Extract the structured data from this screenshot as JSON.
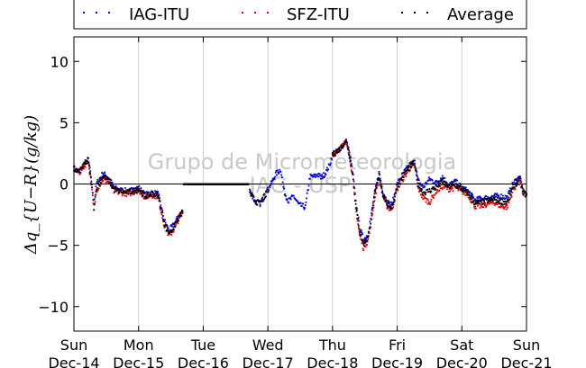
{
  "chart_data": {
    "type": "scatter",
    "ylabel": "Δq_{U−R}(g/kg)",
    "ylim": [
      -12,
      12
    ],
    "yticks": [
      10,
      5,
      0,
      -5,
      -10
    ],
    "y_tick_labels": [
      "10",
      "5",
      "0",
      "−5",
      "−10"
    ],
    "xlim": [
      0,
      7
    ],
    "x_ticks": [
      {
        "pos": 0,
        "day": "Sun",
        "date": "Dec-14"
      },
      {
        "pos": 1,
        "day": "Mon",
        "date": "Dec-15"
      },
      {
        "pos": 2,
        "day": "Tue",
        "date": "Dec-16"
      },
      {
        "pos": 3,
        "day": "Wed",
        "date": "Dec-17"
      },
      {
        "pos": 4,
        "day": "Thu",
        "date": "Dec-18"
      },
      {
        "pos": 5,
        "day": "Fri",
        "date": "Dec-19"
      },
      {
        "pos": 6,
        "day": "Sat",
        "date": "Dec-20"
      },
      {
        "pos": 7,
        "day": "Sun",
        "date": "Dec-21"
      }
    ],
    "grid": "vertical",
    "legend": "top",
    "zero_line": true,
    "watermark": [
      "Grupo de Micrometeorologia",
      "IAG - USP"
    ],
    "series": [
      {
        "name": "IAG-ITU",
        "color": "#0000cc",
        "segments": [
          [
            [
              0.0,
              1.3
            ],
            [
              0.08,
              1.0
            ],
            [
              0.15,
              1.6
            ],
            [
              0.22,
              2.0
            ],
            [
              0.27,
              0.3
            ],
            [
              0.31,
              -1.6
            ],
            [
              0.35,
              0.0
            ],
            [
              0.45,
              0.9
            ],
            [
              0.55,
              0.4
            ],
            [
              0.62,
              -0.3
            ],
            [
              0.72,
              -0.5
            ],
            [
              0.85,
              -0.6
            ],
            [
              0.95,
              -0.4
            ],
            [
              1.0,
              -0.3
            ],
            [
              1.1,
              -0.9
            ],
            [
              1.2,
              -0.7
            ],
            [
              1.3,
              -0.8
            ],
            [
              1.35,
              -1.9
            ],
            [
              1.4,
              -3.0
            ],
            [
              1.47,
              -3.8
            ],
            [
              1.55,
              -3.3
            ],
            [
              1.62,
              -2.6
            ],
            [
              1.68,
              -2.2
            ]
          ],
          [
            [
              2.72,
              -0.6
            ],
            [
              2.8,
              -1.4
            ],
            [
              2.88,
              -1.6
            ],
            [
              2.97,
              -0.8
            ],
            [
              3.05,
              0.0
            ],
            [
              3.12,
              0.8
            ],
            [
              3.2,
              1.2
            ],
            [
              3.25,
              -0.6
            ],
            [
              3.32,
              -1.4
            ],
            [
              3.4,
              -1.0
            ],
            [
              3.48,
              -1.7
            ],
            [
              3.58,
              -1.9
            ],
            [
              3.65,
              0.6
            ],
            [
              3.72,
              0.6
            ],
            [
              3.78,
              0.8
            ],
            [
              3.82,
              0.5
            ],
            [
              3.88,
              0.8
            ],
            [
              3.95,
              1.5
            ],
            [
              4.0,
              2.4
            ],
            [
              4.08,
              2.7
            ],
            [
              4.15,
              3.1
            ],
            [
              4.22,
              3.5
            ],
            [
              4.28,
              2.0
            ],
            [
              4.32,
              0.6
            ],
            [
              4.36,
              -1.5
            ],
            [
              4.42,
              -3.5
            ],
            [
              4.48,
              -4.6
            ],
            [
              4.55,
              -4.1
            ],
            [
              4.6,
              -2.5
            ],
            [
              4.65,
              -0.8
            ],
            [
              4.72,
              0.9
            ],
            [
              4.78,
              -0.6
            ],
            [
              4.85,
              -1.5
            ],
            [
              4.92,
              -1.7
            ],
            [
              5.0,
              0.0
            ],
            [
              5.1,
              0.9
            ],
            [
              5.2,
              1.6
            ],
            [
              5.27,
              1.8
            ],
            [
              5.32,
              0.3
            ],
            [
              5.4,
              -0.3
            ],
            [
              5.5,
              0.4
            ],
            [
              5.6,
              0.1
            ],
            [
              5.7,
              0.6
            ],
            [
              5.8,
              -0.1
            ],
            [
              5.9,
              0.2
            ],
            [
              6.0,
              -0.3
            ],
            [
              6.1,
              -0.6
            ],
            [
              6.2,
              -1.3
            ],
            [
              6.3,
              -1.2
            ],
            [
              6.4,
              -1.1
            ],
            [
              6.5,
              -1.0
            ],
            [
              6.6,
              -1.0
            ],
            [
              6.7,
              -1.1
            ],
            [
              6.8,
              0.1
            ],
            [
              6.9,
              0.6
            ],
            [
              6.95,
              -0.7
            ],
            [
              7.0,
              -0.8
            ]
          ]
        ]
      },
      {
        "name": "SFZ-ITU",
        "color": "#dd0000",
        "segments": [
          [
            [
              0.0,
              1.2
            ],
            [
              0.08,
              0.9
            ],
            [
              0.15,
              1.4
            ],
            [
              0.22,
              1.9
            ],
            [
              0.27,
              0.0
            ],
            [
              0.31,
              -2.2
            ],
            [
              0.35,
              -0.5
            ],
            [
              0.45,
              0.4
            ],
            [
              0.55,
              0.1
            ],
            [
              0.62,
              -0.6
            ],
            [
              0.72,
              -0.7
            ],
            [
              0.85,
              -0.8
            ],
            [
              0.95,
              -0.6
            ],
            [
              1.0,
              -0.5
            ],
            [
              1.1,
              -1.1
            ],
            [
              1.2,
              -0.9
            ],
            [
              1.3,
              -1.0
            ],
            [
              1.35,
              -2.2
            ],
            [
              1.4,
              -3.4
            ],
            [
              1.47,
              -4.2
            ],
            [
              1.55,
              -3.7
            ],
            [
              1.62,
              -2.9
            ],
            [
              1.68,
              -2.4
            ]
          ],
          [
            [
              4.0,
              2.4
            ],
            [
              4.08,
              2.7
            ],
            [
              4.15,
              3.1
            ],
            [
              4.22,
              3.5
            ],
            [
              4.28,
              1.7
            ],
            [
              4.32,
              0.2
            ],
            [
              4.36,
              -2.0
            ],
            [
              4.42,
              -4.2
            ],
            [
              4.48,
              -5.2
            ],
            [
              4.55,
              -4.6
            ],
            [
              4.6,
              -3.0
            ],
            [
              4.65,
              -1.2
            ],
            [
              4.72,
              0.5
            ],
            [
              4.78,
              -1.0
            ],
            [
              4.85,
              -1.9
            ],
            [
              4.92,
              -2.1
            ],
            [
              5.0,
              -0.4
            ],
            [
              5.1,
              0.5
            ],
            [
              5.2,
              1.3
            ],
            [
              5.27,
              1.6
            ],
            [
              5.32,
              -0.3
            ],
            [
              5.4,
              -1.1
            ],
            [
              5.5,
              -1.5
            ],
            [
              5.6,
              -0.6
            ],
            [
              5.7,
              -0.2
            ],
            [
              5.8,
              -0.4
            ],
            [
              5.9,
              -0.3
            ],
            [
              6.0,
              -0.6
            ],
            [
              6.1,
              -0.9
            ],
            [
              6.2,
              -1.8
            ],
            [
              6.3,
              -1.8
            ],
            [
              6.4,
              -1.6
            ],
            [
              6.5,
              -1.5
            ],
            [
              6.6,
              -1.8
            ],
            [
              6.7,
              -1.9
            ],
            [
              6.8,
              -0.4
            ],
            [
              6.9,
              0.2
            ],
            [
              6.95,
              -0.8
            ],
            [
              7.0,
              -0.9
            ]
          ]
        ]
      },
      {
        "name": "Average",
        "color": "#000000",
        "segments": [
          [
            [
              0.0,
              1.25
            ],
            [
              0.08,
              0.95
            ],
            [
              0.15,
              1.5
            ],
            [
              0.22,
              1.95
            ],
            [
              0.27,
              0.15
            ],
            [
              0.31,
              -1.9
            ],
            [
              0.35,
              -0.25
            ],
            [
              0.45,
              0.65
            ],
            [
              0.55,
              0.25
            ],
            [
              0.62,
              -0.45
            ],
            [
              0.72,
              -0.6
            ],
            [
              0.85,
              -0.7
            ],
            [
              0.95,
              -0.5
            ],
            [
              1.0,
              -0.4
            ],
            [
              1.1,
              -1.0
            ],
            [
              1.2,
              -0.8
            ],
            [
              1.3,
              -0.9
            ],
            [
              1.35,
              -2.05
            ],
            [
              1.4,
              -3.2
            ],
            [
              1.47,
              -4.0
            ],
            [
              1.55,
              -3.5
            ],
            [
              1.62,
              -2.75
            ],
            [
              1.68,
              -2.3
            ]
          ],
          [
            [
              1.7,
              0.0
            ],
            [
              2.0,
              0.0
            ],
            [
              2.3,
              0.0
            ],
            [
              2.7,
              0.0
            ]
          ],
          [
            [
              2.72,
              -0.6
            ],
            [
              2.8,
              -1.4
            ],
            [
              2.88,
              -1.6
            ],
            [
              2.97,
              -0.8
            ],
            [
              3.0,
              -0.3
            ]
          ],
          [
            [
              4.0,
              2.4
            ],
            [
              4.08,
              2.7
            ],
            [
              4.15,
              3.1
            ],
            [
              4.22,
              3.5
            ],
            [
              4.28,
              1.85
            ],
            [
              4.32,
              0.4
            ],
            [
              4.36,
              -1.75
            ],
            [
              4.42,
              -3.85
            ],
            [
              4.48,
              -4.9
            ],
            [
              4.55,
              -4.35
            ],
            [
              4.6,
              -2.75
            ],
            [
              4.65,
              -1.0
            ],
            [
              4.72,
              0.7
            ],
            [
              4.78,
              -0.8
            ],
            [
              4.85,
              -1.7
            ],
            [
              4.92,
              -1.9
            ],
            [
              5.0,
              -0.2
            ],
            [
              5.1,
              0.7
            ],
            [
              5.2,
              1.45
            ],
            [
              5.27,
              1.7
            ],
            [
              5.32,
              0.0
            ],
            [
              5.4,
              -0.7
            ],
            [
              5.5,
              -0.55
            ],
            [
              5.6,
              -0.25
            ],
            [
              5.7,
              0.2
            ],
            [
              5.8,
              -0.25
            ],
            [
              5.9,
              -0.05
            ],
            [
              6.0,
              -0.45
            ],
            [
              6.1,
              -0.75
            ],
            [
              6.2,
              -1.55
            ],
            [
              6.3,
              -1.5
            ],
            [
              6.4,
              -1.35
            ],
            [
              6.5,
              -1.25
            ],
            [
              6.6,
              -1.4
            ],
            [
              6.7,
              -1.5
            ],
            [
              6.8,
              -0.15
            ],
            [
              6.9,
              0.4
            ],
            [
              6.95,
              -0.75
            ],
            [
              7.0,
              -0.85
            ]
          ]
        ]
      }
    ]
  }
}
